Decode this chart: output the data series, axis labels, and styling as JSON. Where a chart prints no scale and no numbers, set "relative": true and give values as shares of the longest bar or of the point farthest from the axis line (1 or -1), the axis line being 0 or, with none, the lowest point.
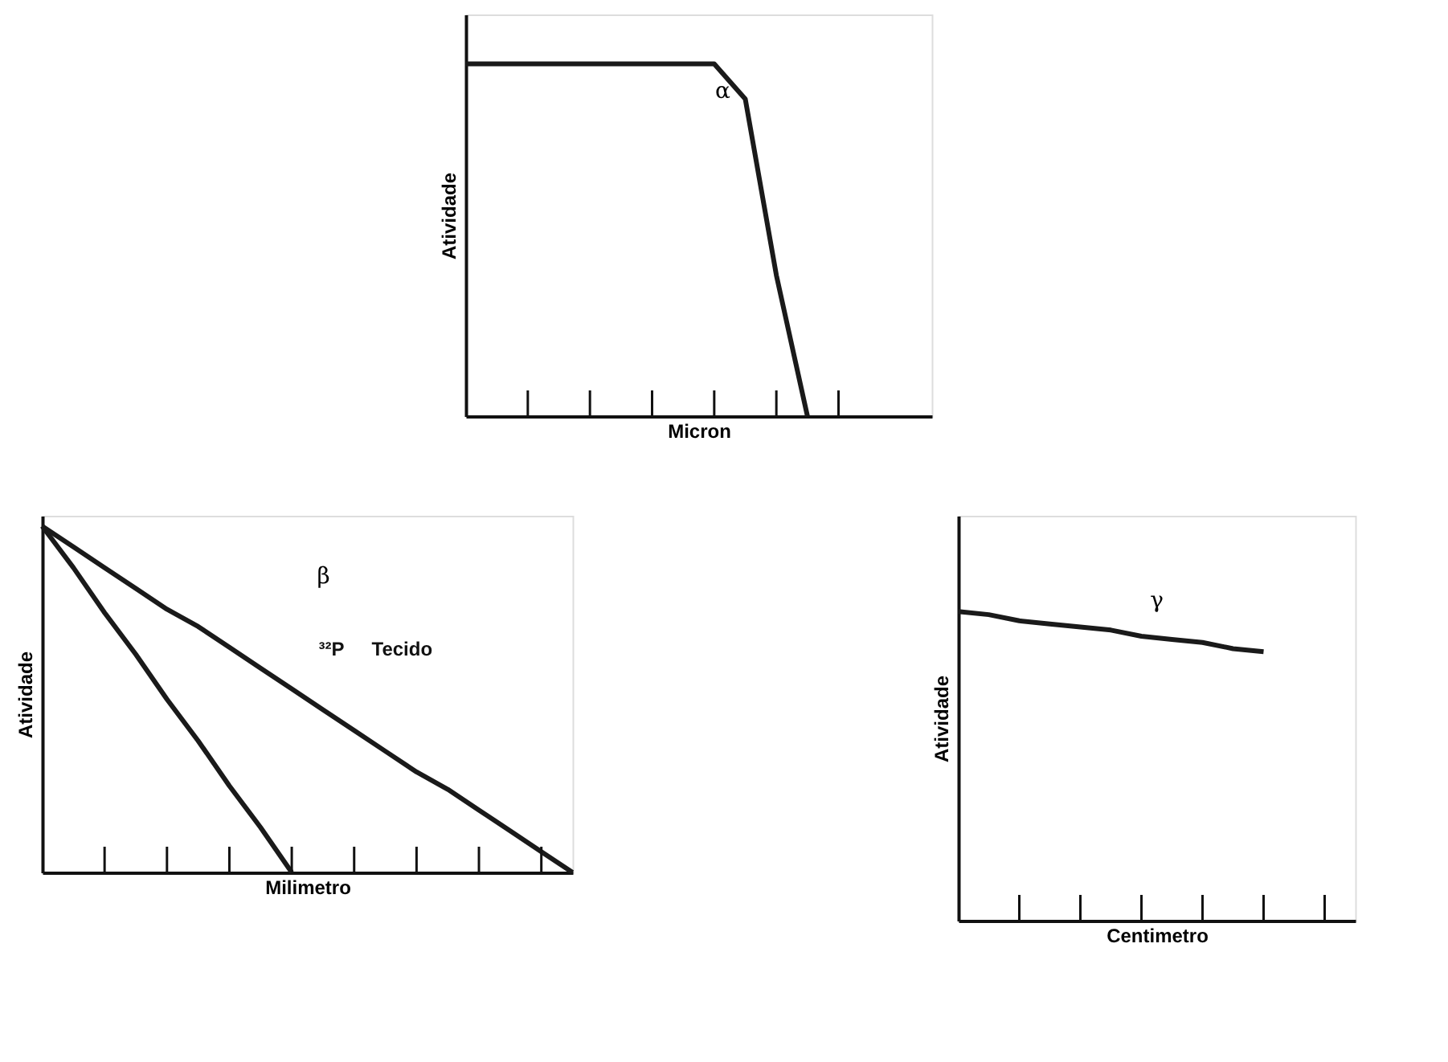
{
  "chart_data": [
    {
      "type": "line",
      "title": "α",
      "xlabel": "Micron",
      "ylabel": "Atividade",
      "relative": true,
      "tick_labels": false,
      "grid": false,
      "marker": "none",
      "line_style": "solid",
      "categories": [
        null,
        null,
        null,
        null,
        null,
        null,
        null,
        null,
        null,
        null,
        null,
        null,
        null,
        null,
        null,
        null
      ],
      "series": [
        {
          "color": "#1a1a1a",
          "values": [
            1,
            1,
            1,
            1,
            1,
            1,
            1,
            1,
            1,
            0.9,
            0.4,
            0,
            null,
            null,
            null,
            null
          ]
        }
      ]
    },
    {
      "type": "line",
      "title": "β",
      "xlabel": "Milimetro",
      "ylabel": "Atividade",
      "relative": true,
      "tick_labels": false,
      "grid": false,
      "marker": "none",
      "line_style": "solid",
      "categories": [
        null,
        null,
        null,
        null,
        null,
        null,
        null,
        null,
        null,
        null,
        null,
        null,
        null,
        null,
        null,
        null,
        null,
        null
      ],
      "series": [
        {
          "color": "#1a1a1a",
          "values": [
            1,
            0.88,
            0.75,
            0.63,
            0.5,
            0.38,
            0.25,
            0.13,
            0,
            null,
            null,
            null,
            null,
            null,
            null,
            null,
            null,
            null
          ]
        },
        {
          "color": "#1a1a1a",
          "values": [
            1,
            0.94,
            0.88,
            0.82,
            0.76,
            0.71,
            0.65,
            0.59,
            0.53,
            0.47,
            0.41,
            0.35,
            0.29,
            0.24,
            0.18,
            0.12,
            0.06,
            0
          ]
        }
      ],
      "annotations": [
        "³²P",
        "Tecido"
      ]
    },
    {
      "type": "line",
      "title": "γ",
      "xlabel": "Centimetro",
      "ylabel": "Atividade",
      "relative": true,
      "tick_labels": false,
      "grid": false,
      "marker": "none",
      "line_style": "solid",
      "categories": [
        null,
        null,
        null,
        null,
        null,
        null,
        null,
        null,
        null,
        null,
        null,
        null,
        null,
        null
      ],
      "series": [
        {
          "color": "#1a1a1a",
          "values": [
            1,
            0.99,
            0.97,
            0.96,
            0.95,
            0.94,
            0.92,
            0.91,
            0.9,
            0.88,
            0.87,
            null,
            null,
            null
          ]
        }
      ]
    }
  ]
}
